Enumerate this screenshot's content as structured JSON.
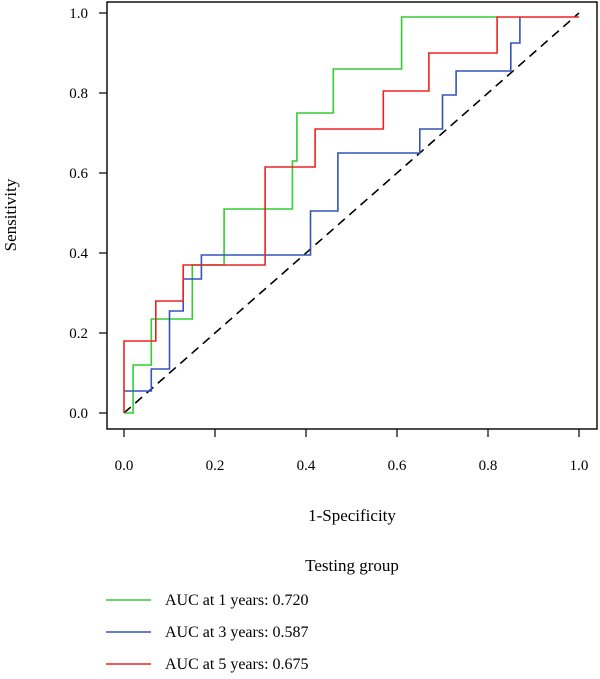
{
  "chart_data": {
    "type": "line",
    "title": "",
    "xlabel": "1-Specificity",
    "ylabel": "Sensitivity",
    "xlim": [
      0.0,
      1.0
    ],
    "ylim": [
      0.0,
      1.0
    ],
    "x_ticks": [
      "0.0",
      "0.2",
      "0.4",
      "0.6",
      "0.8",
      "1.0"
    ],
    "y_ticks": [
      "0.0",
      "0.2",
      "0.4",
      "0.6",
      "0.8",
      "1.0"
    ],
    "grid": false,
    "diagonal_reference": true,
    "legend": {
      "title": "Testing group",
      "placement": "bottom"
    },
    "series": [
      {
        "name": "AUC at 1 years: 0.720",
        "color": "#33cc33",
        "points": [
          [
            0.0,
            0.0
          ],
          [
            0.02,
            0.0
          ],
          [
            0.02,
            0.12
          ],
          [
            0.06,
            0.12
          ],
          [
            0.06,
            0.235
          ],
          [
            0.15,
            0.235
          ],
          [
            0.15,
            0.37
          ],
          [
            0.22,
            0.37
          ],
          [
            0.22,
            0.51
          ],
          [
            0.37,
            0.51
          ],
          [
            0.37,
            0.63
          ],
          [
            0.38,
            0.63
          ],
          [
            0.38,
            0.75
          ],
          [
            0.46,
            0.75
          ],
          [
            0.46,
            0.86
          ],
          [
            0.61,
            0.86
          ],
          [
            0.61,
            0.99
          ],
          [
            0.82,
            0.99
          ]
        ]
      },
      {
        "name": "AUC at 3 years: 0.587",
        "color": "#3355bb",
        "points": [
          [
            0.0,
            0.055
          ],
          [
            0.06,
            0.055
          ],
          [
            0.06,
            0.11
          ],
          [
            0.1,
            0.11
          ],
          [
            0.1,
            0.255
          ],
          [
            0.13,
            0.255
          ],
          [
            0.13,
            0.335
          ],
          [
            0.17,
            0.335
          ],
          [
            0.17,
            0.395
          ],
          [
            0.41,
            0.395
          ],
          [
            0.41,
            0.505
          ],
          [
            0.47,
            0.505
          ],
          [
            0.47,
            0.65
          ],
          [
            0.65,
            0.65
          ],
          [
            0.65,
            0.71
          ],
          [
            0.7,
            0.71
          ],
          [
            0.7,
            0.795
          ],
          [
            0.73,
            0.795
          ],
          [
            0.73,
            0.855
          ],
          [
            0.85,
            0.855
          ],
          [
            0.85,
            0.925
          ],
          [
            0.87,
            0.925
          ],
          [
            0.87,
            0.99
          ]
        ]
      },
      {
        "name": "AUC at 5 years: 0.675",
        "color": "#ee2222",
        "points": [
          [
            0.0,
            0.0
          ],
          [
            0.0,
            0.18
          ],
          [
            0.07,
            0.18
          ],
          [
            0.07,
            0.28
          ],
          [
            0.13,
            0.28
          ],
          [
            0.13,
            0.37
          ],
          [
            0.31,
            0.37
          ],
          [
            0.31,
            0.615
          ],
          [
            0.42,
            0.615
          ],
          [
            0.42,
            0.71
          ],
          [
            0.57,
            0.71
          ],
          [
            0.57,
            0.805
          ],
          [
            0.67,
            0.805
          ],
          [
            0.67,
            0.9
          ],
          [
            0.82,
            0.9
          ],
          [
            0.82,
            0.99
          ],
          [
            1.0,
            0.99
          ]
        ]
      }
    ]
  }
}
